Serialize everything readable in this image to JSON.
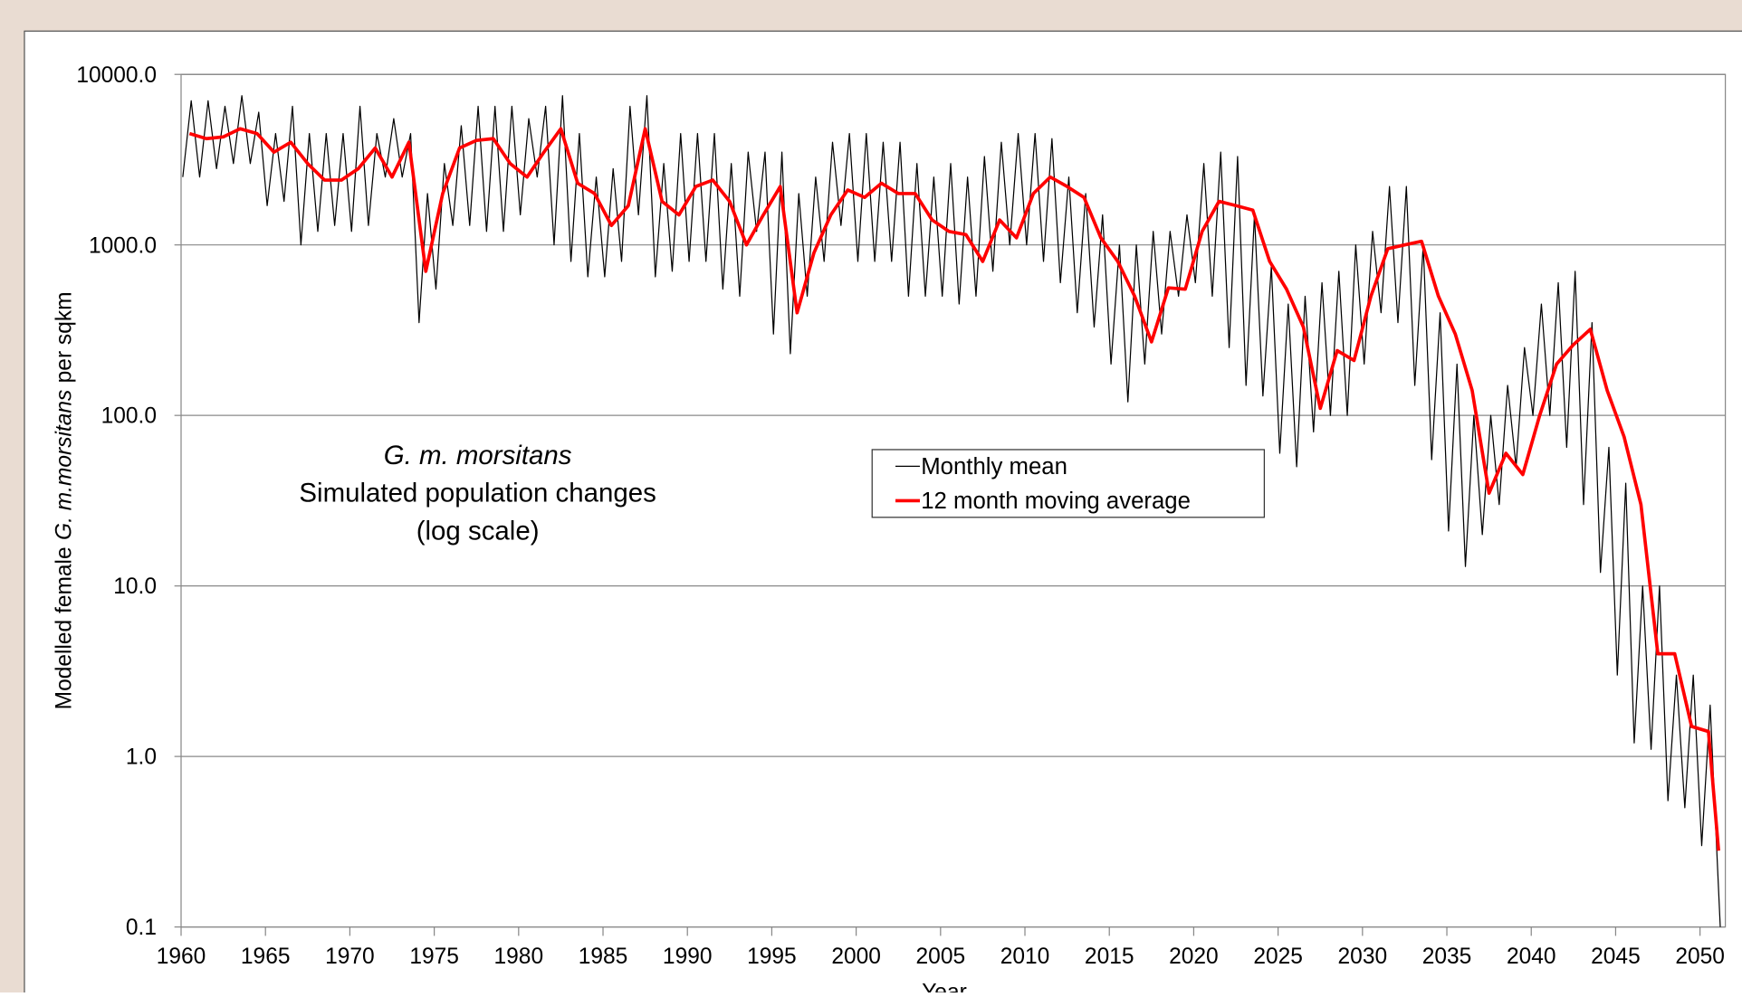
{
  "chart_data": {
    "type": "line",
    "title": [
      "G. m. morsitans",
      "Simulated population changes",
      "(log scale)"
    ],
    "ylabel": [
      "Modelled female",
      "G. m.morsitans",
      "per sqkm"
    ],
    "xlabel": "Year",
    "log_y": true,
    "grid": true,
    "ylim": [
      0.1,
      10000
    ],
    "yticks": [
      {
        "value": 0.1,
        "label": "0.1"
      },
      {
        "value": 1,
        "label": "1.0"
      },
      {
        "value": 10,
        "label": "10.0"
      },
      {
        "value": 100,
        "label": "100.0"
      },
      {
        "value": 1000,
        "label": "1000.0"
      },
      {
        "value": 10000,
        "label": "10000.0"
      }
    ],
    "xlim": [
      1960,
      2051.5
    ],
    "xticks": [
      1960,
      1965,
      1970,
      1975,
      1980,
      1985,
      1990,
      1995,
      2000,
      2005,
      2010,
      2015,
      2020,
      2025,
      2030,
      2035,
      2040,
      2045,
      2050
    ],
    "series": [
      {
        "name": "Monthly mean",
        "color": "#000000",
        "x": [
          1960.1,
          1960.6,
          1961.1,
          1961.6,
          1962.1,
          1962.6,
          1963.1,
          1963.6,
          1964.1,
          1964.6,
          1965.1,
          1965.6,
          1966.1,
          1966.6,
          1967.1,
          1967.6,
          1968.1,
          1968.6,
          1969.1,
          1969.6,
          1970.1,
          1970.6,
          1971.1,
          1971.6,
          1972.1,
          1972.6,
          1973.1,
          1973.6,
          1974.1,
          1974.6,
          1975.1,
          1975.6,
          1976.1,
          1976.6,
          1977.1,
          1977.6,
          1978.1,
          1978.6,
          1979.1,
          1979.6,
          1980.1,
          1980.6,
          1981.1,
          1981.6,
          1982.1,
          1982.6,
          1983.1,
          1983.6,
          1984.1,
          1984.6,
          1985.1,
          1985.6,
          1986.1,
          1986.6,
          1987.1,
          1987.6,
          1988.1,
          1988.6,
          1989.1,
          1989.6,
          1990.1,
          1990.6,
          1991.1,
          1991.6,
          1992.1,
          1992.6,
          1993.1,
          1993.6,
          1994.1,
          1994.6,
          1995.1,
          1995.6,
          1996.1,
          1996.6,
          1997.1,
          1997.6,
          1998.1,
          1998.6,
          1999.1,
          1999.6,
          2000.1,
          2000.6,
          2001.1,
          2001.6,
          2002.1,
          2002.6,
          2003.1,
          2003.6,
          2004.1,
          2004.6,
          2005.1,
          2005.6,
          2006.1,
          2006.6,
          2007.1,
          2007.6,
          2008.1,
          2008.6,
          2009.1,
          2009.6,
          2010.1,
          2010.6,
          2011.1,
          2011.6,
          2012.1,
          2012.6,
          2013.1,
          2013.6,
          2014.1,
          2014.6,
          2015.1,
          2015.6,
          2016.1,
          2016.6,
          2017.1,
          2017.6,
          2018.1,
          2018.6,
          2019.1,
          2019.6,
          2020.1,
          2020.6,
          2021.1,
          2021.6,
          2022.1,
          2022.6,
          2023.1,
          2023.6,
          2024.1,
          2024.6,
          2025.1,
          2025.6,
          2026.1,
          2026.6,
          2027.1,
          2027.6,
          2028.1,
          2028.6,
          2029.1,
          2029.6,
          2030.1,
          2030.6,
          2031.1,
          2031.6,
          2032.1,
          2032.6,
          2033.1,
          2033.6,
          2034.1,
          2034.6,
          2035.1,
          2035.6,
          2036.1,
          2036.6,
          2037.1,
          2037.6,
          2038.1,
          2038.6,
          2039.1,
          2039.6,
          2040.1,
          2040.6,
          2041.1,
          2041.6,
          2042.1,
          2042.6,
          2043.1,
          2043.6,
          2044.1,
          2044.6,
          2045.1,
          2045.6,
          2046.1,
          2046.6,
          2047.1,
          2047.6,
          2048.1,
          2048.6,
          2049.1,
          2049.6,
          2050.1,
          2050.6,
          2051.2
        ],
        "values": [
          2500,
          7000,
          2500,
          7000,
          2800,
          6500,
          3000,
          7500,
          3000,
          6000,
          1700,
          4500,
          1800,
          6500,
          1000,
          4500,
          1200,
          4500,
          1300,
          4500,
          1200,
          6500,
          1300,
          4500,
          2500,
          5500,
          2500,
          4500,
          350,
          2000,
          550,
          3000,
          1300,
          5000,
          1300,
          6500,
          1200,
          6500,
          1200,
          6500,
          1500,
          5500,
          2500,
          6500,
          1000,
          7500,
          800,
          4500,
          650,
          2500,
          650,
          2800,
          800,
          6500,
          1500,
          7500,
          650,
          3000,
          700,
          4500,
          800,
          4500,
          800,
          4500,
          550,
          3000,
          500,
          3500,
          1200,
          3500,
          300,
          3500,
          230,
          2000,
          500,
          2500,
          800,
          4000,
          1300,
          4500,
          800,
          4500,
          800,
          4000,
          800,
          4000,
          500,
          3000,
          500,
          2500,
          500,
          3000,
          450,
          2500,
          500,
          3300,
          700,
          4000,
          1000,
          4500,
          1000,
          4500,
          800,
          4200,
          600,
          2500,
          400,
          2000,
          330,
          1500,
          200,
          1000,
          120,
          1000,
          200,
          1200,
          300,
          1200,
          500,
          1500,
          600,
          3000,
          500,
          3500,
          250,
          3300,
          150,
          1500,
          130,
          750,
          60,
          450,
          50,
          500,
          80,
          600,
          100,
          700,
          100,
          1000,
          200,
          1200,
          400,
          2200,
          350,
          2200,
          150,
          1000,
          55,
          400,
          21,
          200,
          13,
          100,
          20,
          100,
          30,
          150,
          50,
          250,
          100,
          450,
          100,
          600,
          65,
          700,
          30,
          350,
          12,
          65,
          3,
          40,
          1.2,
          10,
          1.1,
          10,
          0.55,
          3,
          0.5,
          3,
          0.3,
          2,
          0.1
        ]
      },
      {
        "name": "12 month moving average",
        "color": "#ff0000",
        "x": [
          1960.5,
          1961.5,
          1962.5,
          1963.5,
          1964.5,
          1965.5,
          1966.5,
          1967.5,
          1968.5,
          1969.5,
          1970.5,
          1971.5,
          1972.5,
          1973.5,
          1974.5,
          1975.5,
          1976.5,
          1977.5,
          1978.5,
          1979.5,
          1980.5,
          1981.5,
          1982.5,
          1983.5,
          1984.5,
          1985.5,
          1986.5,
          1987.5,
          1988.5,
          1989.5,
          1990.5,
          1991.5,
          1992.5,
          1993.5,
          1994.5,
          1995.5,
          1996.5,
          1997.5,
          1998.5,
          1999.5,
          2000.5,
          2001.5,
          2002.5,
          2003.5,
          2004.5,
          2005.5,
          2006.5,
          2007.5,
          2008.5,
          2009.5,
          2010.5,
          2011.5,
          2012.5,
          2013.5,
          2014.5,
          2015.5,
          2016.5,
          2017.5,
          2018.5,
          2019.5,
          2020.5,
          2021.5,
          2022.5,
          2023.5,
          2024.5,
          2025.5,
          2026.5,
          2027.5,
          2028.5,
          2029.5,
          2030.5,
          2031.5,
          2032.5,
          2033.5,
          2034.5,
          2035.5,
          2036.5,
          2037.5,
          2038.5,
          2039.5,
          2040.5,
          2041.5,
          2042.5,
          2043.5,
          2044.5,
          2045.5,
          2046.5,
          2047.5,
          2048.5,
          2049.5,
          2050.5,
          2051.1
        ],
        "values": [
          4500,
          4200,
          4300,
          4800,
          4500,
          3500,
          4000,
          3000,
          2400,
          2400,
          2800,
          3700,
          2500,
          4000,
          700,
          2000,
          3700,
          4100,
          4200,
          3000,
          2500,
          3500,
          4800,
          2300,
          2000,
          1300,
          1700,
          4800,
          1800,
          1500,
          2200,
          2400,
          1800,
          1000,
          1500,
          2200,
          400,
          900,
          1500,
          2100,
          1900,
          2300,
          2000,
          2000,
          1400,
          1200,
          1150,
          800,
          1400,
          1100,
          2000,
          2500,
          2200,
          1900,
          1100,
          800,
          500,
          270,
          560,
          550,
          1200,
          1800,
          1700,
          1600,
          800,
          550,
          330,
          110,
          240,
          210,
          500,
          950,
          1000,
          1050,
          500,
          300,
          140,
          35,
          60,
          45,
          100,
          200,
          260,
          320,
          140,
          75,
          30,
          4,
          4,
          1.5,
          1.4,
          0.28
        ]
      }
    ]
  }
}
